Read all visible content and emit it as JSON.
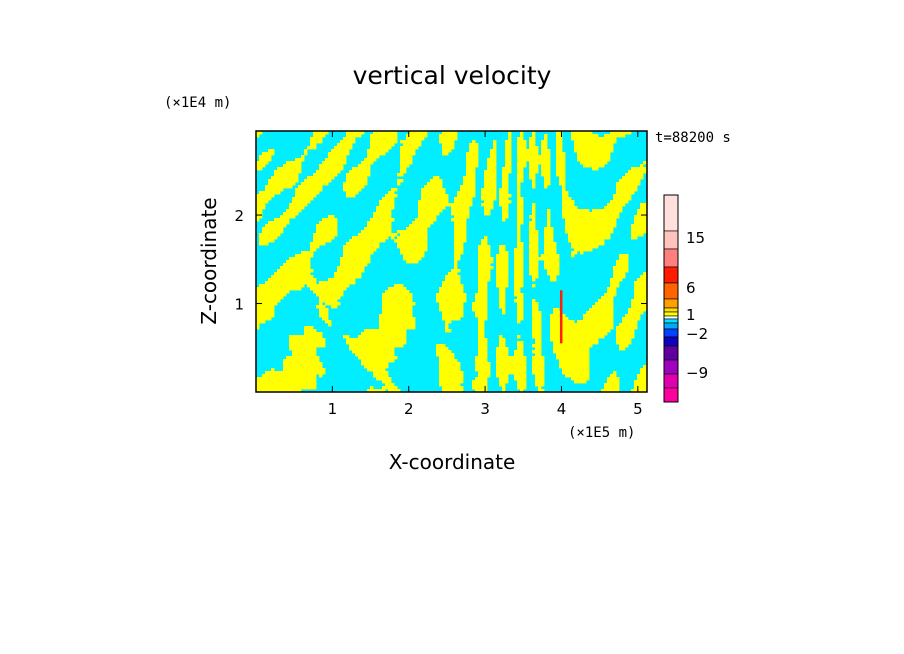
{
  "chart_data": {
    "type": "heatmap",
    "title": "vertical velocity",
    "xlabel": "X-coordinate",
    "ylabel": "Z-coordinate",
    "x_scale_label": "(×1E5 m)",
    "y_scale_label": "(×1E4 m)",
    "time_label": "t=88200 s",
    "xlim": [
      0,
      5.12
    ],
    "ylim": [
      0,
      2.95
    ],
    "x_ticks": [
      "1",
      "2",
      "3",
      "4",
      "5"
    ],
    "y_ticks": [
      "1",
      "2"
    ],
    "colorbar": {
      "tick_labels": [
        "15",
        "6",
        "1",
        "-2",
        "-9"
      ],
      "colors_top_to_bottom": [
        "#ffe0dc",
        "#ffc2bc",
        "#ff7f7f",
        "#ff1a00",
        "#ff6400",
        "#ffa000",
        "#ffe000",
        "#ffff00",
        "#ffffff",
        "#00e5ff",
        "#00aaff",
        "#0040ff",
        "#1000c0",
        "#6000a0",
        "#a000c0",
        "#e000b0",
        "#ff00a0"
      ]
    },
    "dominant_colors": {
      "positive": "#ffff00",
      "negative": "#00eeff",
      "extreme": "#ff2000"
    },
    "grid": false
  }
}
